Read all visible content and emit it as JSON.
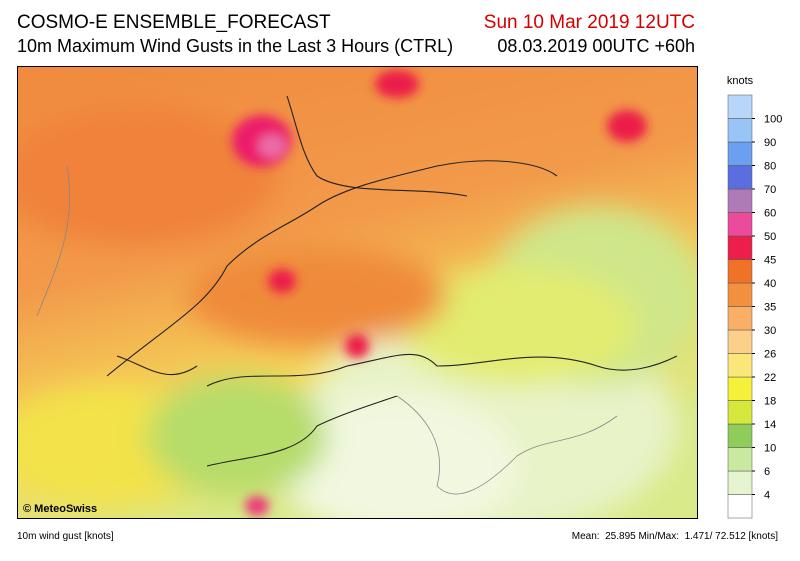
{
  "header": {
    "title": "COSMO-E ENSEMBLE_FORECAST",
    "subtitle": "10m Maximum Wind Gusts in the Last 3 Hours (CTRL)",
    "valid_time": "Sun 10 Mar 2019 12UTC",
    "run_time": "08.03.2019 00UTC +60h"
  },
  "map": {
    "credit": "© MeteoSwiss"
  },
  "colorbar": {
    "title": "knots",
    "levels": [
      4,
      6,
      10,
      14,
      18,
      22,
      26,
      30,
      35,
      40,
      45,
      50,
      60,
      70,
      80,
      90,
      100
    ],
    "colors": [
      "#ffffff",
      "#e6f5d0",
      "#c9e8a0",
      "#8fcc5a",
      "#d6e83c",
      "#f5f03a",
      "#fbe67a",
      "#fcd08a",
      "#f9b066",
      "#f39040",
      "#ee7328",
      "#ec1e4a",
      "#ec4a9a",
      "#b07ab8",
      "#5a6ee0",
      "#6b9ff0",
      "#98c4f8",
      "#b8d6fa"
    ]
  },
  "footer": {
    "left": "10m wind gust [knots]",
    "right": "Mean:  25.895 Min/Max:  1.471/ 72.512 [knots]"
  }
}
